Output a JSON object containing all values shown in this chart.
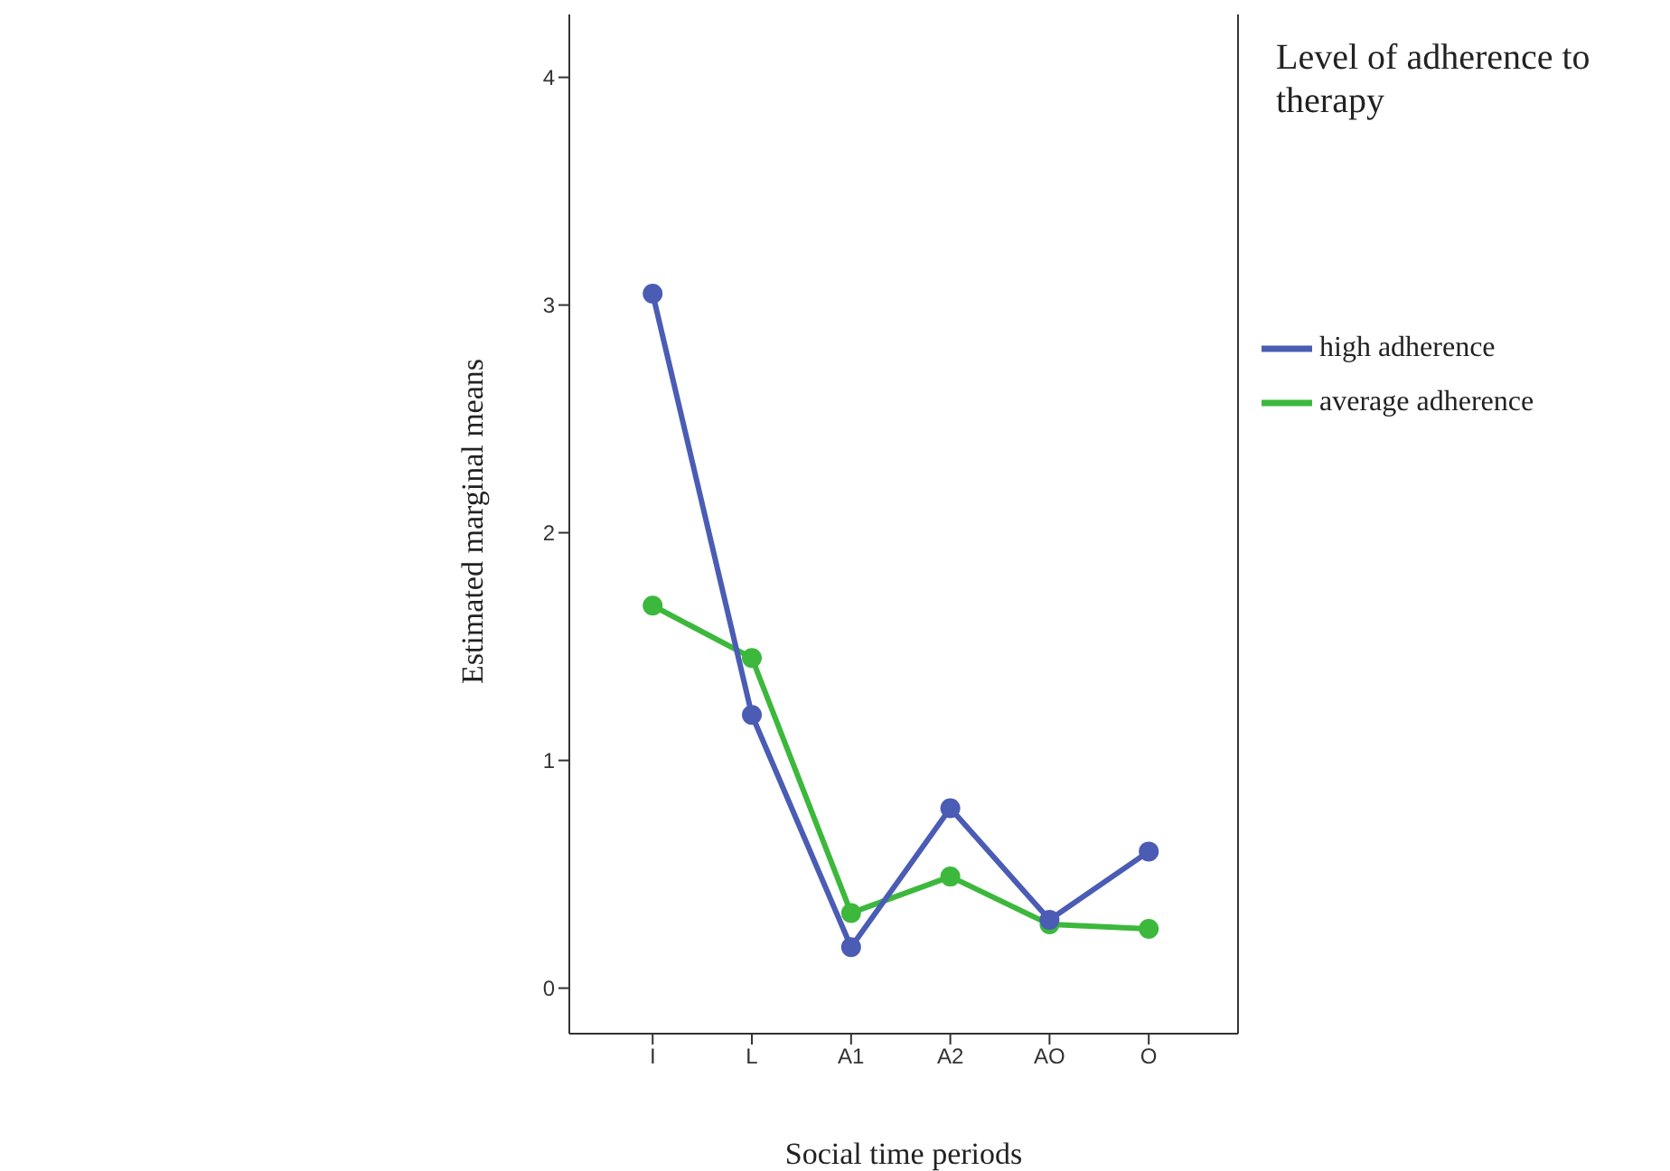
{
  "chart_data": {
    "type": "line",
    "xlabel": "Social time periods",
    "ylabel": "Estimated marginal means",
    "legend_title": "Level of adherence to therapy",
    "categories": [
      "I",
      "L",
      "A1",
      "A2",
      "AO",
      "O"
    ],
    "series": [
      {
        "name": "high adherence",
        "color": "#4a5cb4",
        "values": [
          3.05,
          1.2,
          0.18,
          0.79,
          0.3,
          0.6
        ]
      },
      {
        "name": "average adherence",
        "color": "#3cb83c",
        "values": [
          1.68,
          1.45,
          0.33,
          0.49,
          0.28,
          0.26
        ]
      }
    ],
    "ylim": [
      -0.2,
      4.3
    ],
    "yticks": [
      0,
      1,
      2,
      3,
      4
    ],
    "grid": false,
    "legend": "right",
    "marker": "circle",
    "line_style": "solid"
  }
}
